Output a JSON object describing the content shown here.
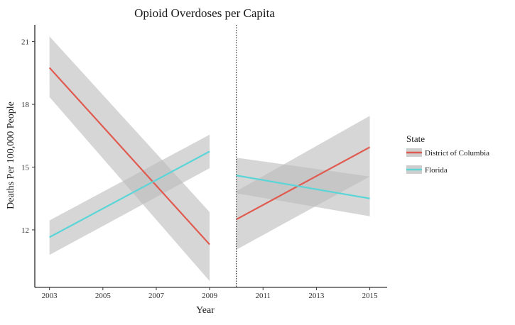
{
  "chart_data": {
    "type": "line",
    "title": "Opioid Overdoses per Capita",
    "xlabel": "Year",
    "ylabel": "Deaths Per 100,000 People",
    "xlim": [
      2002.45,
      2015.65
    ],
    "ylim": [
      9.25,
      21.8
    ],
    "x_ticks": [
      2003,
      2005,
      2007,
      2009,
      2011,
      2013,
      2015
    ],
    "y_ticks": [
      12,
      15,
      18,
      21
    ],
    "grid": false,
    "vline": {
      "x": 2010,
      "style": "dotted"
    },
    "legend": {
      "title": "State",
      "placement": "right",
      "entries": [
        "District of Columbia",
        "Florida"
      ]
    },
    "series": [
      {
        "name": "District of Columbia",
        "color": "#e05a4f",
        "segments": [
          {
            "x": [
              2003,
              2009
            ],
            "y": [
              19.75,
              11.3
            ],
            "band_upper": [
              21.25,
              12.85
            ],
            "band_lower": [
              18.35,
              9.55
            ]
          },
          {
            "x": [
              2010,
              2015
            ],
            "y": [
              12.5,
              15.95
            ],
            "band_upper": [
              13.85,
              17.45
            ],
            "band_lower": [
              11.05,
              14.55
            ]
          }
        ]
      },
      {
        "name": "Florida",
        "color": "#5bd5d8",
        "segments": [
          {
            "x": [
              2003,
              2009
            ],
            "y": [
              11.65,
              15.75
            ],
            "band_upper": [
              12.45,
              16.55
            ],
            "band_lower": [
              10.8,
              14.95
            ]
          },
          {
            "x": [
              2010,
              2015
            ],
            "y": [
              14.6,
              13.5
            ],
            "band_upper": [
              15.45,
              14.55
            ],
            "band_lower": [
              13.75,
              12.65
            ]
          }
        ]
      }
    ],
    "band_color": "#bdbdbd"
  }
}
